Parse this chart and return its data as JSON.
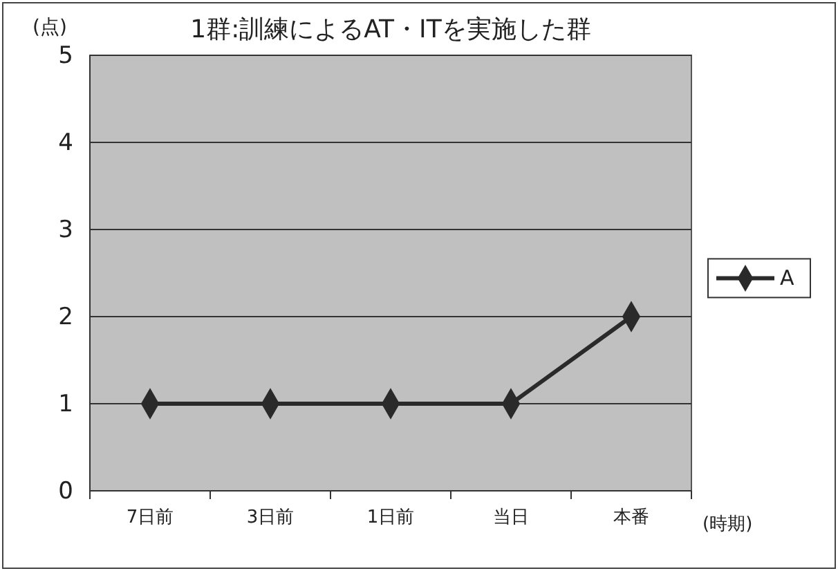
{
  "chart_data": {
    "type": "line",
    "title": "1群:訓練によるAT・ITを実施した群",
    "ylabel": "(点)",
    "xlabel": "(時期)",
    "categories": [
      "7日前",
      "3日前",
      "1日前",
      "当日",
      "本番"
    ],
    "series": [
      {
        "name": "A",
        "color": "#2a2a2a",
        "values": [
          1,
          1,
          1,
          1,
          2
        ]
      }
    ],
    "ylim": [
      0,
      5
    ],
    "yticks": [
      0,
      1,
      2,
      3,
      4,
      5
    ],
    "grid": "y",
    "legend": "right",
    "marker": "diamond",
    "line_style": "solid"
  }
}
